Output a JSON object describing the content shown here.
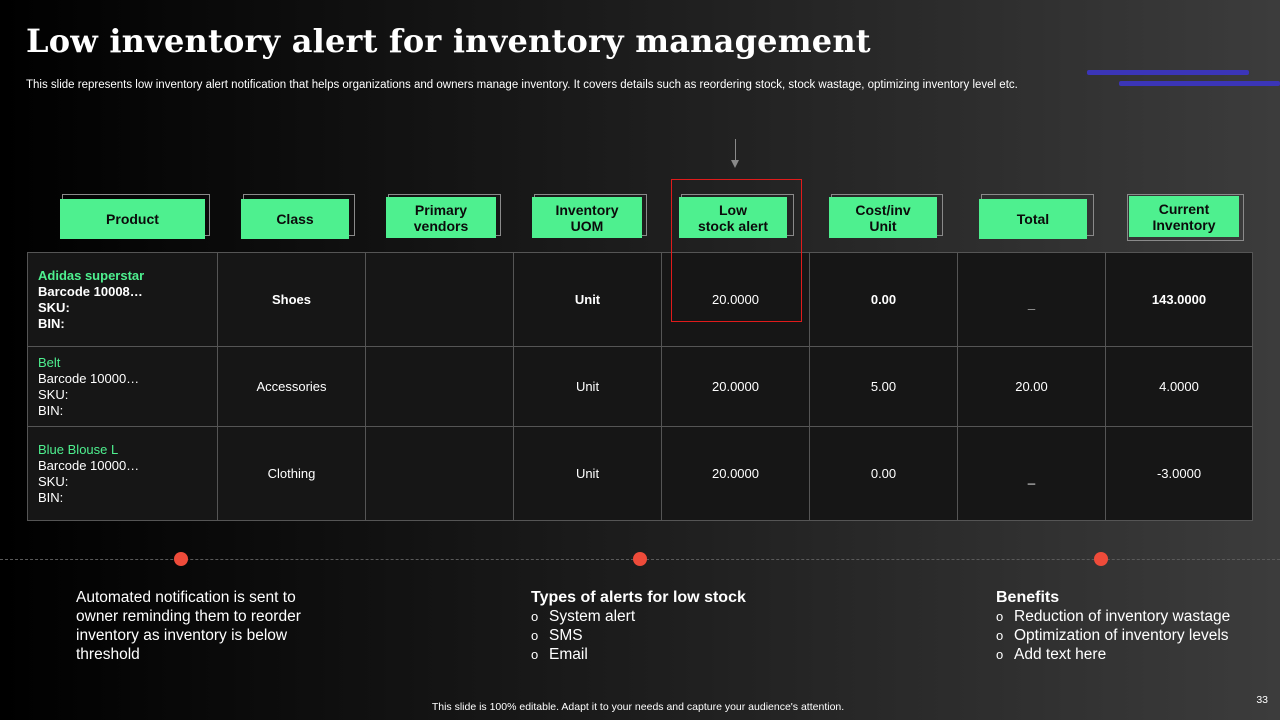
{
  "slide": {
    "title": "Low inventory alert for inventory management",
    "subtitle": "This slide represents low inventory alert notification that helps organizations and owners manage inventory. It covers details such as reordering stock, stock wastage, optimizing inventory level etc.",
    "footer": "This slide is 100% editable. Adapt it to your needs and capture your audience's attention.",
    "page_number": "33"
  },
  "colors": {
    "accent_green": "#4ef08f",
    "highlight_red": "#e01b1b",
    "dot_red": "#ee4b3a",
    "decor_blue": "#3b35b8"
  },
  "headers": [
    "Product",
    "Class",
    "Primary\nvendors",
    "Inventory\nUOM",
    "Low\nstock alert",
    "Cost/inv\nUnit",
    "Total",
    "Current\nInventory"
  ],
  "rows": [
    {
      "product_name": "Adidas superstar",
      "barcode": "Barcode 10008…",
      "sku": "SKU:",
      "bin": "BIN:",
      "class": "Shoes",
      "vendor": "",
      "uom": "Unit",
      "low_stock": "20.0000",
      "cost": "0.00",
      "total": "_",
      "current": "143.0000"
    },
    {
      "product_name": "Belt",
      "barcode": "Barcode 10000…",
      "sku": "SKU:",
      "bin": "BIN:",
      "class": "Accessories",
      "vendor": "",
      "uom": "Unit",
      "low_stock": "20.0000",
      "cost": "5.00",
      "total": "20.00",
      "current": "4.0000"
    },
    {
      "product_name": "Blue Blouse L",
      "barcode": "Barcode 10000…",
      "sku": "SKU:",
      "bin": "BIN:",
      "class": "Clothing",
      "vendor": "",
      "uom": "Unit",
      "low_stock": "20.0000",
      "cost": "0.00",
      "total": "_",
      "current": "-3.0000"
    }
  ],
  "notes": {
    "left": "Automated notification is sent to owner reminding them to reorder inventory as inventory is below threshold",
    "middle": {
      "heading": "Types of alerts for low stock",
      "bullet_glyph": "o",
      "items": [
        "System alert",
        "SMS",
        "Email"
      ]
    },
    "right": {
      "heading": "Benefits",
      "bullet_glyph": "o",
      "items": [
        "Reduction of inventory wastage",
        "Optimization of inventory levels",
        "Add text here"
      ]
    }
  }
}
